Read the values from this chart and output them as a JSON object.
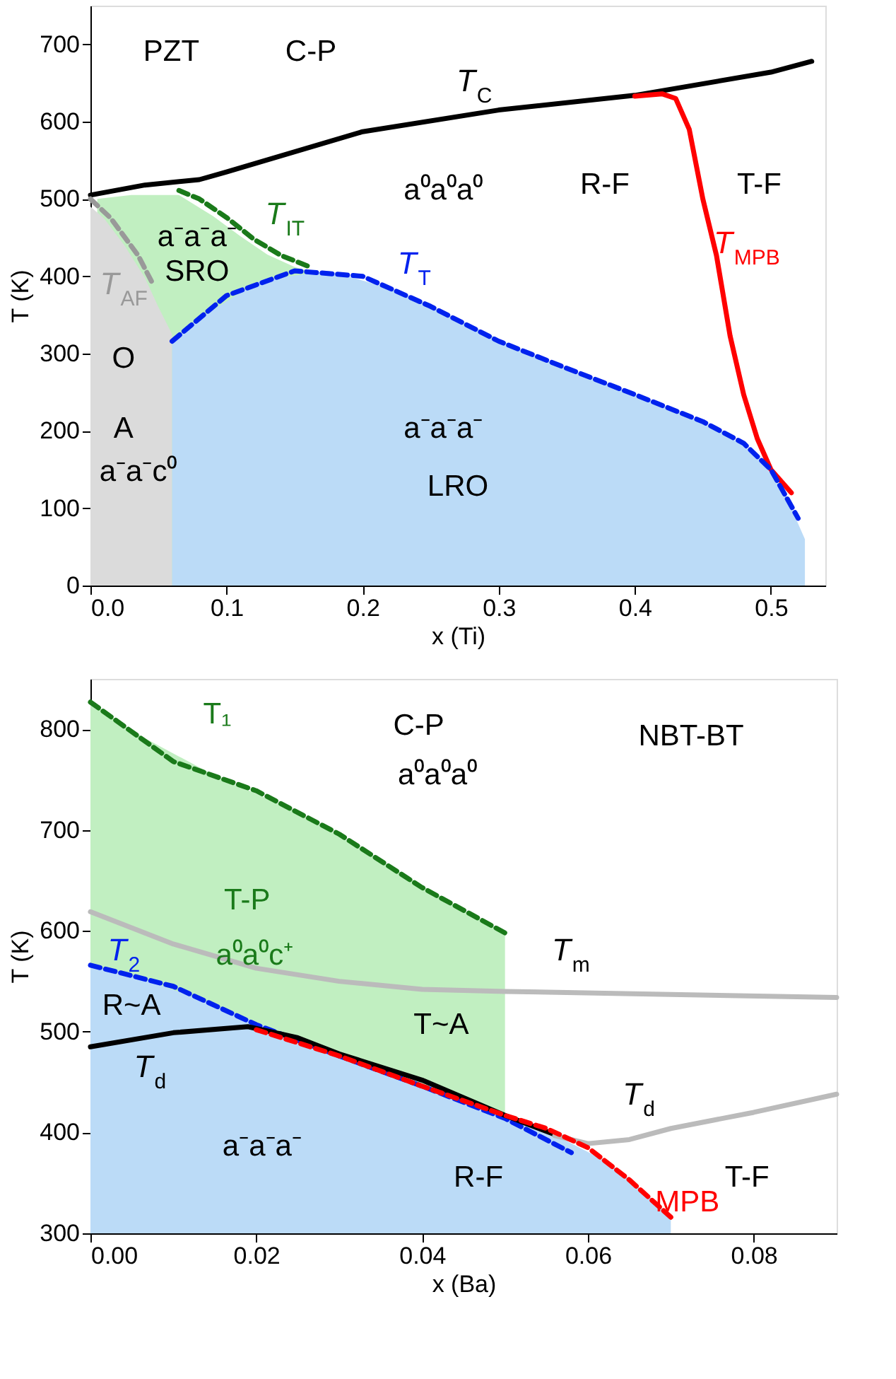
{
  "chart_data": [
    {
      "type": "line",
      "xlabel": "x (Ti)",
      "ylabel": "T (K)",
      "xlim": [
        0,
        0.54
      ],
      "ylim": [
        0,
        750
      ],
      "xticks": [
        {
          "value": 0,
          "label": "0.0"
        },
        0.1,
        0.2,
        0.3,
        0.4,
        0.5
      ],
      "yticks": [
        0,
        100,
        200,
        300,
        400,
        500,
        600,
        700
      ],
      "grid": false,
      "series": [
        {
          "type": "area",
          "color": "#c1efc1",
          "x": [
            0.005,
            0.03,
            0.065,
            0.09,
            0.11,
            0.13,
            0.15,
            0.165
          ],
          "values": [
            500,
            505,
            505,
            478,
            452,
            428,
            412,
            405
          ]
        },
        {
          "type": "area",
          "color": "#dbdbdb",
          "x": [
            0,
            0.01,
            0.025,
            0.04,
            0.05,
            0.06
          ],
          "values": [
            490,
            475,
            440,
            398,
            360,
            325
          ]
        },
        {
          "type": "area",
          "color": "#bbdbf7",
          "x": [
            0.06,
            0.075,
            0.125,
            0.175,
            0.225,
            0.275,
            0.325,
            0.375,
            0.425,
            0.465,
            0.49,
            0.51,
            0.525
          ],
          "values": [
            316,
            340,
            395,
            407,
            382,
            340,
            298,
            264,
            230,
            198,
            168,
            120,
            60
          ]
        },
        {
          "color": "#000000",
          "line_style": "solid",
          "x": [
            0,
            0.04,
            0.08,
            0.1,
            0.2,
            0.3,
            0.4,
            0.5,
            0.53
          ],
          "values": [
            505,
            518,
            525,
            535,
            587,
            615,
            634,
            664,
            678
          ]
        },
        {
          "color": "#ff0000",
          "line_style": "solid",
          "x": [
            0.4,
            0.42,
            0.43,
            0.44,
            0.45,
            0.46,
            0.47,
            0.48,
            0.49,
            0.5,
            0.515
          ],
          "values": [
            633,
            636,
            630,
            590,
            500,
            427,
            323,
            247,
            190,
            150,
            120
          ]
        },
        {
          "color": "#0022ee",
          "line_style": "dashed",
          "x": [
            0.06,
            0.1,
            0.15,
            0.2,
            0.25,
            0.3,
            0.35,
            0.4,
            0.45,
            0.48,
            0.5,
            0.52
          ],
          "values": [
            316,
            375,
            407,
            400,
            361,
            316,
            281,
            247,
            212,
            184,
            150,
            87
          ]
        },
        {
          "color": "#1a7a1a",
          "line_style": "dashed",
          "x": [
            0.065,
            0.08,
            0.1,
            0.12,
            0.14,
            0.16
          ],
          "values": [
            511,
            500,
            476,
            448,
            427,
            413
          ]
        },
        {
          "color": "#999999",
          "line_style": "dashed",
          "x": [
            0.0,
            0.015,
            0.035,
            0.045
          ],
          "values": [
            500,
            475,
            427,
            393
          ]
        }
      ],
      "annotations": [
        "PZT",
        "C-P",
        "T$_{C}$",
        "a⁰a⁰a⁰",
        "R-F",
        "T-F",
        "T$_{IT}$",
        "T$_{MPB}$",
        "a⁻a⁻a⁻",
        "SRO",
        "T$_{T}$",
        "T$_{AF}$",
        "O",
        "A",
        "a⁻a⁻c⁰",
        "a⁻a⁻a⁻",
        "LRO"
      ]
    },
    {
      "type": "line",
      "xlabel": "x (Ba)",
      "ylabel": "T (K)",
      "xlim": [
        0,
        0.09
      ],
      "ylim": [
        300,
        850
      ],
      "xticks": [
        {
          "value": 0,
          "label": "0.00"
        },
        {
          "value": 0.02,
          "label": "0.02"
        },
        {
          "value": 0.04,
          "label": "0.04"
        },
        {
          "value": 0.06,
          "label": "0.06"
        },
        {
          "value": 0.08,
          "label": "0.08"
        }
      ],
      "yticks": [
        300,
        400,
        500,
        600,
        700,
        800
      ],
      "grid": false,
      "series": [
        {
          "type": "area",
          "color": "#c1efc1",
          "x": [
            0,
            0.005,
            0.015,
            0.025,
            0.035,
            0.045,
            0.05
          ],
          "values": [
            827,
            798,
            754,
            718,
            670,
            620,
            598
          ]
        },
        {
          "type": "area",
          "color": "#bbdbf7",
          "x": [
            0,
            0.005,
            0.015,
            0.025,
            0.035,
            0.045,
            0.055,
            0.0625,
            0.0675,
            0.07
          ],
          "values": [
            566,
            556,
            527,
            492,
            461,
            430,
            402,
            370,
            336,
            316
          ]
        },
        {
          "color": "#1a7a1a",
          "line_style": "dashed",
          "x": [
            0,
            0.01,
            0.02,
            0.03,
            0.04,
            0.05
          ],
          "values": [
            827,
            768,
            739,
            696,
            643,
            598
          ]
        },
        {
          "color": "#bbbbbb",
          "line_style": "solid",
          "x": [
            0,
            0.01,
            0.02,
            0.03,
            0.04,
            0.05,
            0.07,
            0.09
          ],
          "values": [
            619,
            587,
            563,
            550,
            542,
            540,
            537,
            534
          ]
        },
        {
          "color": "#0022ee",
          "line_style": "dashed",
          "x": [
            0,
            0.01,
            0.02,
            0.03,
            0.04,
            0.05,
            0.058
          ],
          "values": [
            566,
            545,
            507,
            476,
            446,
            414,
            380
          ]
        },
        {
          "color": "#000000",
          "line_style": "solid",
          "x": [
            0,
            0.01,
            0.019,
            0.025,
            0.03,
            0.04,
            0.05,
            0.056
          ],
          "values": [
            485,
            499,
            505,
            494,
            478,
            452,
            417,
            398
          ]
        },
        {
          "color": "#bbbbbb",
          "line_style": "solid",
          "x": [
            0.056,
            0.06,
            0.065,
            0.07,
            0.08,
            0.09
          ],
          "values": [
            397,
            389,
            393,
            404,
            420,
            438
          ]
        },
        {
          "color": "#ff0000",
          "line_style": "dashed",
          "x": [
            0.02,
            0.03,
            0.04,
            0.05,
            0.055,
            0.06,
            0.065,
            0.07
          ],
          "values": [
            502,
            476,
            446,
            417,
            404,
            385,
            353,
            316
          ]
        }
      ],
      "annotations": [
        "T₁",
        "C-P",
        "a⁰a⁰a⁰",
        "NBT-BT",
        "T-P",
        "a⁰a⁰c⁺",
        "T$_{m}$",
        "T$_{2}$",
        "R~A",
        "T$_{d}$",
        "T~A",
        "T$_{d}$",
        "a⁻a⁻a⁻",
        "R-F",
        "T-F",
        "MPB"
      ]
    }
  ]
}
